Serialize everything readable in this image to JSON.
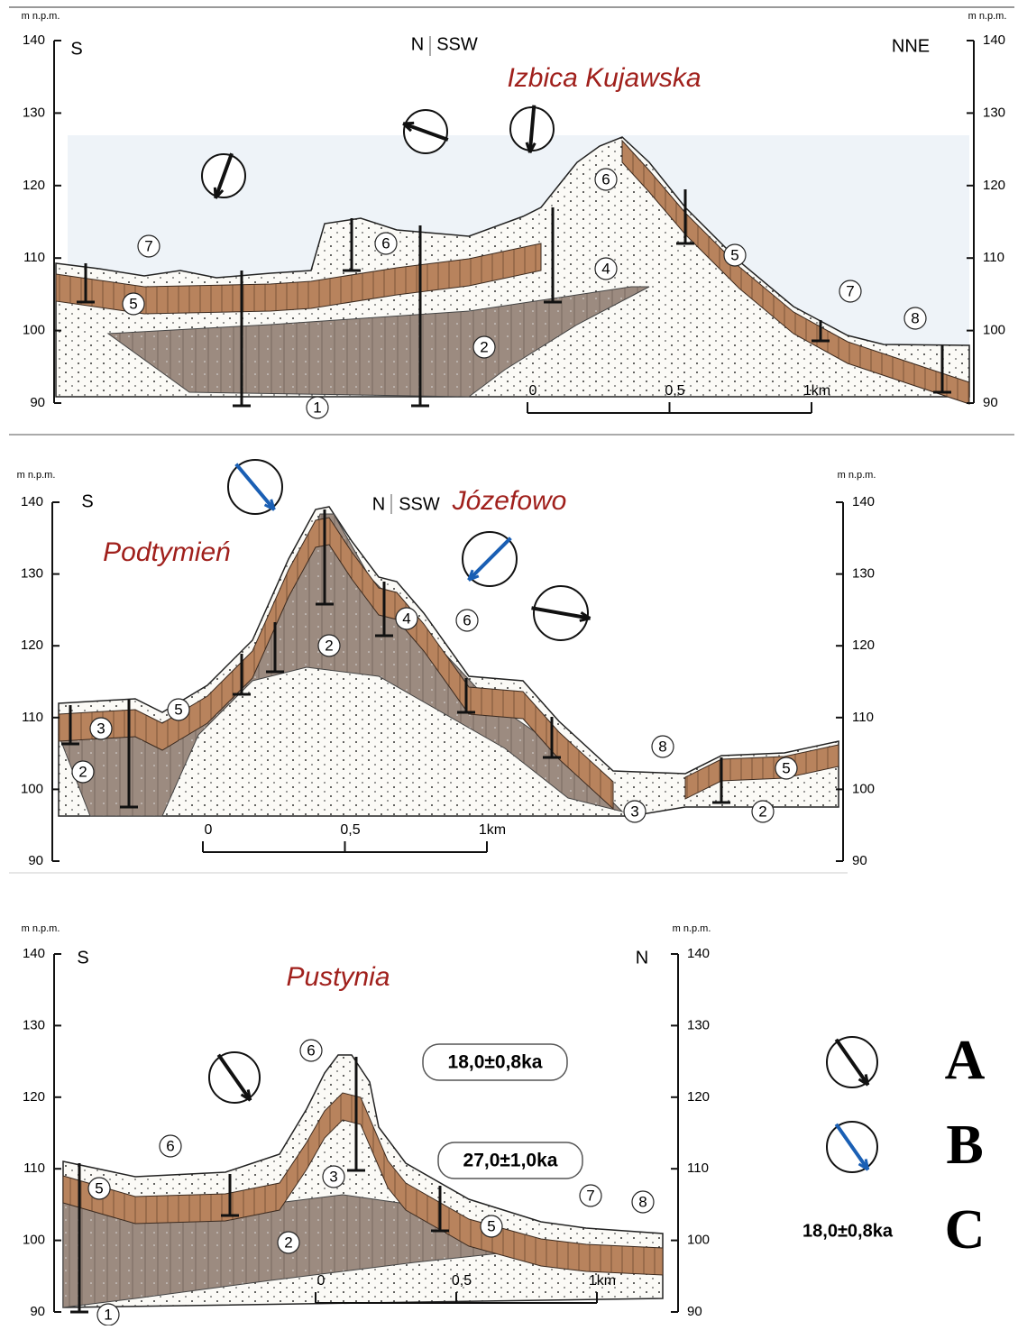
{
  "panels": [
    {
      "title": "Izbica Kujawska",
      "directions": [
        "S",
        "N",
        "SSW",
        "NNE"
      ],
      "left_axis": {
        "unit": "m n.p.m.",
        "ticks": [
          140,
          130,
          120,
          110,
          100,
          90
        ]
      },
      "right_axis": {
        "unit": "m n.p.m.",
        "ticks": [
          140,
          130,
          120,
          110,
          100,
          90
        ]
      },
      "layers": [
        "7",
        "6",
        "5",
        "4",
        "2",
        "1",
        "6",
        "5",
        "7",
        "8"
      ],
      "scale": [
        "0",
        "0,5",
        "1km"
      ]
    },
    {
      "title": "Józefowo",
      "subtitle": "Podtymień",
      "directions": [
        "S",
        "N",
        "SSW"
      ],
      "left_axis": {
        "unit": "m n.p.m.",
        "ticks": [
          140,
          130,
          120,
          110,
          100,
          90
        ]
      },
      "right_axis": {
        "unit": "m n.p.m.",
        "ticks": [
          140,
          130,
          120,
          110,
          100,
          90
        ]
      },
      "layers": [
        "4",
        "6",
        "2",
        "5",
        "3",
        "2",
        "8",
        "3",
        "2",
        "5"
      ],
      "scale": [
        "0",
        "0,5",
        "1km"
      ]
    },
    {
      "title": "Pustynia",
      "directions": [
        "S",
        "N"
      ],
      "left_axis": {
        "unit": "m n.p.m.",
        "ticks": [
          140,
          130,
          120,
          110,
          100,
          90
        ]
      },
      "right_axis": {
        "unit": "m n.p.m.",
        "ticks": [
          140,
          130,
          120,
          110,
          100,
          90
        ]
      },
      "layers": [
        "6",
        "6",
        "5",
        "3",
        "2",
        "5",
        "7",
        "8",
        "1"
      ],
      "scale": [
        "0",
        "0,5",
        "1km"
      ],
      "dates": [
        "18,0±0,8ka",
        "27,0±1,0ka"
      ]
    }
  ],
  "legend": [
    {
      "key": "A"
    },
    {
      "key": "B"
    },
    {
      "key": "C",
      "text": "18,0±0,8ka"
    }
  ]
}
